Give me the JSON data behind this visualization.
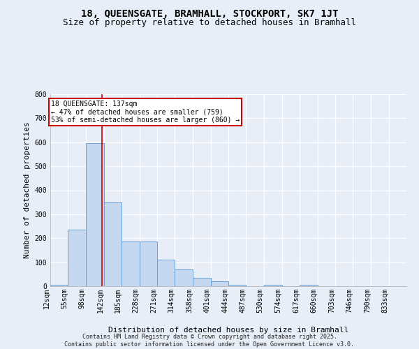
{
  "title_line1": "18, QUEENSGATE, BRAMHALL, STOCKPORT, SK7 1JT",
  "title_line2": "Size of property relative to detached houses in Bramhall",
  "xlabel": "Distribution of detached houses by size in Bramhall",
  "ylabel": "Number of detached properties",
  "footer": "Contains HM Land Registry data © Crown copyright and database right 2025.\nContains public sector information licensed under the Open Government Licence v3.0.",
  "bar_edges": [
    12,
    55,
    98,
    142,
    185,
    228,
    271,
    314,
    358,
    401,
    444,
    487,
    530,
    574,
    617,
    660,
    703,
    746,
    790,
    833,
    876
  ],
  "bar_heights": [
    5,
    235,
    595,
    350,
    185,
    185,
    110,
    70,
    35,
    20,
    5,
    0,
    5,
    0,
    5,
    0,
    0,
    0,
    0,
    0
  ],
  "bar_color": "#c5d8f0",
  "bar_edgecolor": "#6b9fd4",
  "property_size": 137,
  "vline_color": "#cc0000",
  "annotation_text": "18 QUEENSGATE: 137sqm\n← 47% of detached houses are smaller (759)\n53% of semi-detached houses are larger (860) →",
  "annotation_box_edgecolor": "#cc0000",
  "annotation_box_facecolor": "#ffffff",
  "ylim": [
    0,
    800
  ],
  "yticks": [
    0,
    100,
    200,
    300,
    400,
    500,
    600,
    700,
    800
  ],
  "bg_color": "#e8eef8",
  "plot_bg_color": "#e8eef8",
  "grid_color": "#ffffff",
  "title_fontsize": 10,
  "subtitle_fontsize": 9,
  "tick_label_fontsize": 7,
  "axis_label_fontsize": 8,
  "footer_fontsize": 6
}
